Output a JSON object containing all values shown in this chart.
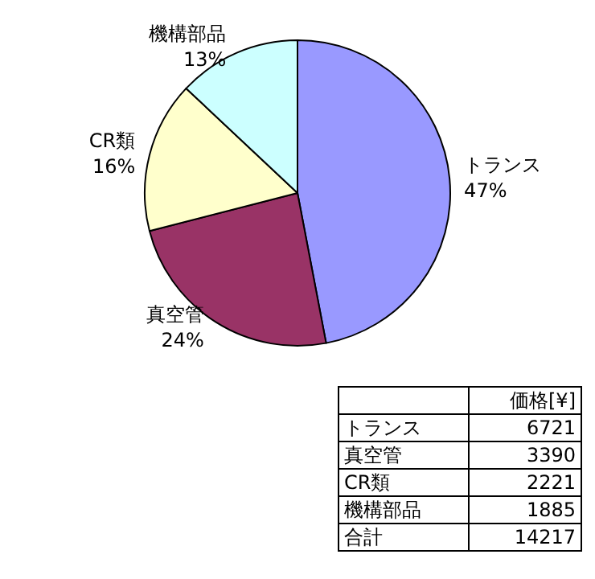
{
  "chart_data": [
    {
      "type": "pie",
      "categories": [
        "トランス",
        "真空管",
        "CR類",
        "機構部品"
      ],
      "values": [
        47,
        24,
        16,
        13
      ],
      "colors": [
        "#9999ff",
        "#993366",
        "#ffffcc",
        "#ccffff"
      ],
      "value_labels": [
        "47%",
        "24%",
        "16%",
        "13%"
      ],
      "legend": false
    },
    {
      "type": "other",
      "categories": [
        "トランス",
        "真空管",
        "CR類",
        "機構部品"
      ],
      "values": [
        6721,
        3390,
        2221,
        1885
      ],
      "ylabel": "価格[¥]",
      "totals": [
        "14217"
      ],
      "annotations": [
        "合計"
      ],
      "data_labels": true
    }
  ]
}
